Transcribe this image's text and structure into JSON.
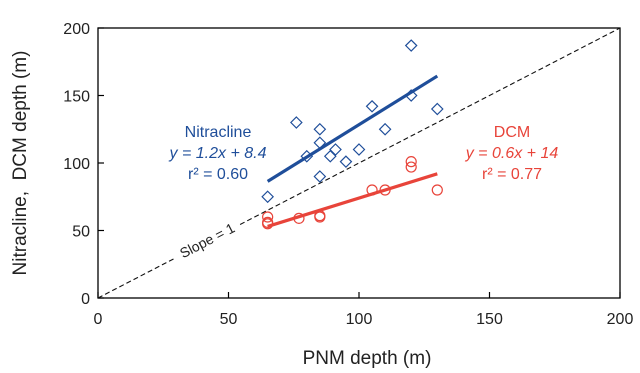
{
  "chart_data": {
    "type": "scatter",
    "xlabel": "PNM depth (m)",
    "ylabel": "Nitracline,  DCM depth (m)",
    "xlim": [
      0,
      200
    ],
    "ylim": [
      0,
      200
    ],
    "xticks": [
      0,
      50,
      100,
      150,
      200
    ],
    "yticks": [
      0,
      50,
      100,
      150,
      200
    ],
    "grid": false,
    "reference_line": {
      "label": "Slope = 1",
      "slope": 1,
      "intercept": 0
    },
    "series": [
      {
        "name": "Nitracline",
        "marker": "diamond",
        "color": "#1f4e9a",
        "points": [
          [
            65,
            75
          ],
          [
            76,
            130
          ],
          [
            80,
            105
          ],
          [
            85,
            90
          ],
          [
            85,
            115
          ],
          [
            85,
            125
          ],
          [
            89,
            105
          ],
          [
            91,
            110
          ],
          [
            95,
            101
          ],
          [
            100,
            110
          ],
          [
            105,
            142
          ],
          [
            110,
            125
          ],
          [
            120,
            187
          ],
          [
            120,
            150
          ],
          [
            130,
            140
          ]
        ],
        "fit": {
          "slope": 1.2,
          "intercept": 8.4,
          "x_range": [
            65,
            130
          ]
        },
        "annotation": {
          "name": "Nitracline",
          "equation": "y = 1.2x + 8.4",
          "r2": "r² = 0.60"
        }
      },
      {
        "name": "DCM",
        "marker": "circle",
        "color": "#e8443a",
        "points": [
          [
            65,
            55
          ],
          [
            65,
            56
          ],
          [
            65,
            60
          ],
          [
            77,
            59
          ],
          [
            85,
            60
          ],
          [
            85,
            61
          ],
          [
            105,
            80
          ],
          [
            110,
            80
          ],
          [
            120,
            97
          ],
          [
            120,
            101
          ],
          [
            130,
            80
          ]
        ],
        "fit": {
          "slope": 0.6,
          "intercept": 14,
          "x_range": [
            65,
            130
          ]
        },
        "annotation": {
          "name": "DCM",
          "equation": "y = 0.6x + 14",
          "r2": "r² = 0.77"
        }
      }
    ]
  }
}
